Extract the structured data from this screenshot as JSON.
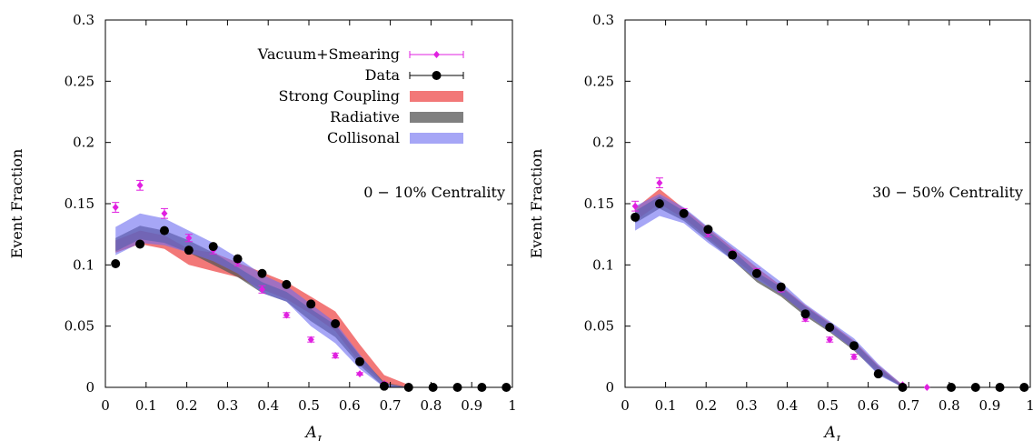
{
  "chart_data": [
    {
      "type": "line",
      "panel": "left",
      "annotation": "0 − 10% Centrality",
      "xlabel": "A_J",
      "ylabel": "Event Fraction",
      "xlim": [
        0,
        1
      ],
      "ylim": [
        0,
        0.3
      ],
      "xticks": [
        "0",
        "0.1",
        "0.2",
        "0.3",
        "0.4",
        "0.5",
        "0.6",
        "0.7",
        "0.8",
        "0.9",
        "1"
      ],
      "yticks": [
        "0",
        "0.05",
        "0.1",
        "0.15",
        "0.2",
        "0.25",
        "0.3"
      ],
      "legend": {
        "position": "top-right",
        "entries": [
          "Vacuum+Smearing",
          "Data",
          "Strong Coupling",
          "Radiative",
          "Collisonal"
        ]
      },
      "series": [
        {
          "name": "Vacuum+Smearing",
          "color": "#e020e0",
          "style": "points-errorbars",
          "x": [
            0.025,
            0.085,
            0.145,
            0.205,
            0.265,
            0.325,
            0.385,
            0.445,
            0.505,
            0.565,
            0.625,
            0.685,
            0.745,
            0.805,
            0.865,
            0.925,
            0.985
          ],
          "y": [
            0.147,
            0.165,
            0.142,
            0.122,
            0.112,
            0.102,
            0.08,
            0.059,
            0.039,
            0.026,
            0.011,
            0.003,
            0.001,
            0.0,
            0.0,
            0.0,
            0.0
          ],
          "err": [
            0.004,
            0.004,
            0.004,
            0.003,
            0.003,
            0.003,
            0.003,
            0.002,
            0.002,
            0.002,
            0.001,
            0.001,
            0.0005,
            0.0,
            0.0,
            0.0,
            0.0
          ]
        },
        {
          "name": "Data",
          "color": "#000000",
          "style": "points-errorbars",
          "x": [
            0.025,
            0.085,
            0.145,
            0.205,
            0.265,
            0.325,
            0.385,
            0.445,
            0.505,
            0.565,
            0.625,
            0.685,
            0.745,
            0.805,
            0.865,
            0.925,
            0.985
          ],
          "y": [
            0.101,
            0.117,
            0.128,
            0.112,
            0.115,
            0.105,
            0.093,
            0.084,
            0.068,
            0.052,
            0.021,
            0.001,
            0.0,
            0.0,
            0.0,
            0.0,
            0.0
          ]
        },
        {
          "name": "Strong Coupling",
          "color": "#f06060",
          "style": "band",
          "x": [
            0.025,
            0.085,
            0.145,
            0.205,
            0.265,
            0.325,
            0.385,
            0.445,
            0.505,
            0.565,
            0.625,
            0.685,
            0.745
          ],
          "lower": [
            0.11,
            0.117,
            0.113,
            0.1,
            0.095,
            0.09,
            0.08,
            0.072,
            0.06,
            0.046,
            0.02,
            0.003,
            0.0
          ],
          "upper": [
            0.12,
            0.128,
            0.124,
            0.113,
            0.11,
            0.102,
            0.094,
            0.086,
            0.074,
            0.062,
            0.035,
            0.01,
            0.002
          ]
        },
        {
          "name": "Radiative",
          "color": "#555555",
          "style": "band",
          "x": [
            0.025,
            0.085,
            0.145,
            0.205,
            0.265,
            0.325,
            0.385,
            0.445,
            0.505,
            0.565,
            0.625,
            0.685,
            0.745
          ],
          "lower": [
            0.111,
            0.121,
            0.118,
            0.11,
            0.1,
            0.09,
            0.077,
            0.07,
            0.054,
            0.041,
            0.018,
            0.0,
            0.0
          ],
          "upper": [
            0.122,
            0.132,
            0.128,
            0.12,
            0.11,
            0.098,
            0.086,
            0.078,
            0.064,
            0.051,
            0.026,
            0.004,
            0.0
          ]
        },
        {
          "name": "Collisonal",
          "color": "#6a6af0",
          "style": "band",
          "x": [
            0.025,
            0.085,
            0.145,
            0.205,
            0.265,
            0.325,
            0.385,
            0.445,
            0.505,
            0.565,
            0.625,
            0.685,
            0.745
          ],
          "lower": [
            0.108,
            0.118,
            0.116,
            0.11,
            0.103,
            0.093,
            0.077,
            0.07,
            0.05,
            0.036,
            0.015,
            0.0,
            0.0
          ],
          "upper": [
            0.131,
            0.142,
            0.138,
            0.128,
            0.118,
            0.106,
            0.092,
            0.083,
            0.068,
            0.053,
            0.027,
            0.003,
            0.0
          ]
        }
      ]
    },
    {
      "type": "line",
      "panel": "right",
      "annotation": "30 − 50% Centrality",
      "xlabel": "A_J",
      "ylabel": "Event Fraction",
      "xlim": [
        0,
        1
      ],
      "ylim": [
        0,
        0.3
      ],
      "xticks": [
        "0",
        "0.1",
        "0.2",
        "0.3",
        "0.4",
        "0.5",
        "0.6",
        "0.7",
        "0.8",
        "0.9",
        "1"
      ],
      "yticks": [
        "0",
        "0.05",
        "0.1",
        "0.15",
        "0.2",
        "0.25",
        "0.3"
      ],
      "series": [
        {
          "name": "Vacuum+Smearing",
          "color": "#e020e0",
          "style": "points-errorbars",
          "x": [
            0.025,
            0.085,
            0.145,
            0.205,
            0.265,
            0.325,
            0.385,
            0.445,
            0.505,
            0.565,
            0.625,
            0.685,
            0.745,
            0.805,
            0.865,
            0.925,
            0.985
          ],
          "y": [
            0.148,
            0.167,
            0.143,
            0.126,
            0.109,
            0.094,
            0.08,
            0.056,
            0.039,
            0.025,
            0.011,
            0.002,
            0.0,
            0.0,
            0.0,
            0.0,
            0.0
          ],
          "err": [
            0.004,
            0.004,
            0.003,
            0.003,
            0.003,
            0.003,
            0.002,
            0.002,
            0.002,
            0.002,
            0.001,
            0.0005,
            0.0,
            0.0,
            0.0,
            0.0,
            0.0
          ]
        },
        {
          "name": "Data",
          "color": "#000000",
          "style": "points-errorbars",
          "x": [
            0.025,
            0.085,
            0.145,
            0.205,
            0.265,
            0.325,
            0.385,
            0.445,
            0.505,
            0.565,
            0.625,
            0.685,
            0.805,
            0.865,
            0.925,
            0.985
          ],
          "y": [
            0.139,
            0.15,
            0.142,
            0.129,
            0.108,
            0.093,
            0.082,
            0.06,
            0.049,
            0.034,
            0.011,
            0.0,
            0.0,
            0.0,
            0.0,
            0.0
          ]
        },
        {
          "name": "Strong Coupling",
          "color": "#f06060",
          "style": "band",
          "x": [
            0.025,
            0.085,
            0.145,
            0.205,
            0.265,
            0.325,
            0.385,
            0.445,
            0.505,
            0.565,
            0.625,
            0.685
          ],
          "lower": [
            0.136,
            0.15,
            0.138,
            0.122,
            0.106,
            0.09,
            0.076,
            0.06,
            0.047,
            0.031,
            0.012,
            0.0
          ],
          "upper": [
            0.146,
            0.162,
            0.146,
            0.13,
            0.114,
            0.098,
            0.083,
            0.067,
            0.053,
            0.038,
            0.018,
            0.002
          ]
        },
        {
          "name": "Radiative",
          "color": "#555555",
          "style": "band",
          "x": [
            0.025,
            0.085,
            0.145,
            0.205,
            0.265,
            0.325,
            0.385,
            0.445,
            0.505,
            0.565,
            0.625,
            0.685
          ],
          "lower": [
            0.134,
            0.146,
            0.136,
            0.12,
            0.104,
            0.086,
            0.074,
            0.058,
            0.045,
            0.03,
            0.011,
            0.0
          ],
          "upper": [
            0.144,
            0.156,
            0.144,
            0.128,
            0.112,
            0.094,
            0.082,
            0.066,
            0.052,
            0.037,
            0.017,
            0.001
          ]
        },
        {
          "name": "Collisonal",
          "color": "#6a6af0",
          "style": "band",
          "x": [
            0.025,
            0.085,
            0.145,
            0.205,
            0.265,
            0.325,
            0.385,
            0.445,
            0.505,
            0.565,
            0.625,
            0.685
          ],
          "lower": [
            0.128,
            0.14,
            0.134,
            0.118,
            0.104,
            0.088,
            0.076,
            0.06,
            0.046,
            0.031,
            0.01,
            0.0
          ],
          "upper": [
            0.148,
            0.158,
            0.147,
            0.131,
            0.116,
            0.101,
            0.086,
            0.068,
            0.054,
            0.04,
            0.019,
            0.002
          ]
        }
      ]
    }
  ]
}
